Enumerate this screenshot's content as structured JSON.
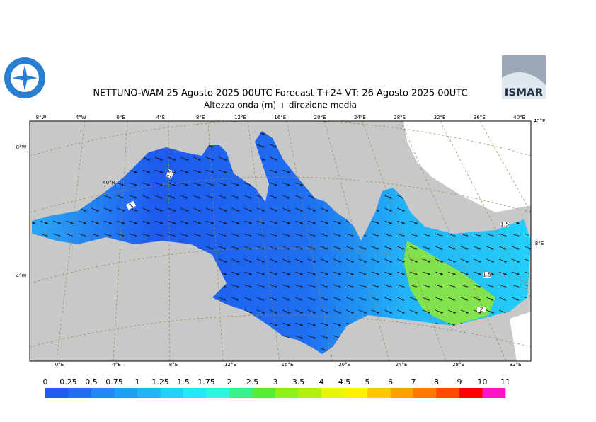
{
  "header": {
    "title": "NETTUNO-WAM  25   Agosto  2025 00UTC Forecast T+24 VT: 26   Agosto  2025 00UTC",
    "subtitle": "Altezza onda (m) + direzione media",
    "logo_right": "ISMAR"
  },
  "map": {
    "top_labels": [
      "8°W",
      "4°W",
      "0°E",
      "4°E",
      "8°E",
      "12°E",
      "16°E",
      "20°E",
      "24°E",
      "28°E",
      "32°E",
      "36°E",
      "40°E"
    ],
    "bottom_labels": [
      "0°E",
      "4°E",
      "8°E",
      "12°E",
      "16°E",
      "20°E",
      "24°E",
      "28°E",
      "32°E"
    ],
    "left_labels": [
      "8°W",
      "4°W"
    ],
    "right_labels": [
      "40°E",
      "8°E"
    ],
    "inner_labels": [
      "40°N"
    ],
    "contour_labels": [
      "0.5",
      "1",
      "1.5",
      "1.5",
      "2"
    ]
  },
  "legend": {
    "levels": [
      "0",
      "0.25",
      "0.5",
      "0.75",
      "1",
      "1.25",
      "1.5",
      "1.75",
      "2",
      "2.5",
      "3",
      "3.5",
      "4",
      "4.5",
      "5",
      "6",
      "7",
      "8",
      "9",
      "10",
      "11"
    ],
    "colors": [
      "#1e5aee",
      "#1f6ff0",
      "#2088f2",
      "#20a0f5",
      "#22b4f7",
      "#24cff9",
      "#27e6fb",
      "#2ff5e0",
      "#3cf08a",
      "#55ee34",
      "#8ef01c",
      "#b4f00f",
      "#e6f50a",
      "#fff000",
      "#ffc800",
      "#ffa000",
      "#ff7800",
      "#ff4b00",
      "#ff0000",
      "#ff14c8"
    ]
  }
}
